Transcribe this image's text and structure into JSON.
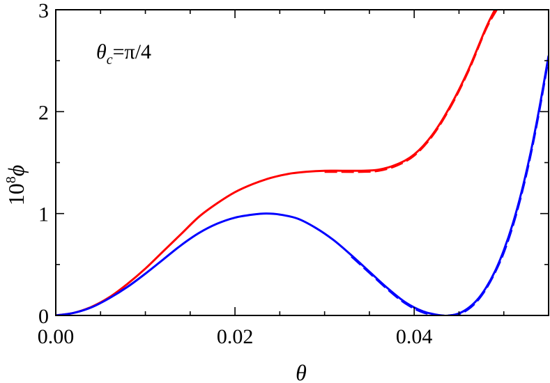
{
  "chart_data": {
    "type": "line",
    "title": "",
    "xlabel": "θ",
    "ylabel_base": "10",
    "ylabel_exp": "8",
    "ylabel_var": "ϕ",
    "xlim": [
      0,
      0.055
    ],
    "ylim": [
      0,
      3
    ],
    "x_ticks": [
      0.0,
      0.02,
      0.04
    ],
    "x_tick_labels": [
      "0.00",
      "0.02",
      "0.04"
    ],
    "y_ticks": [
      0,
      1,
      2,
      3
    ],
    "y_tick_labels": [
      "0",
      "1",
      "2",
      "3"
    ],
    "grid": false,
    "annotation": {
      "var": "θ",
      "sub": "c",
      "rest": "=π/4"
    },
    "series": [
      {
        "color": "#ff0000",
        "style": "solid",
        "x": [
          0.0,
          0.002,
          0.004,
          0.006,
          0.008,
          0.01,
          0.012,
          0.014,
          0.016,
          0.018,
          0.02,
          0.022,
          0.024,
          0.026,
          0.028,
          0.03,
          0.032,
          0.034,
          0.036,
          0.038,
          0.04,
          0.042,
          0.044,
          0.046,
          0.048,
          0.049
        ],
        "y": [
          0.0,
          0.025,
          0.085,
          0.18,
          0.31,
          0.46,
          0.63,
          0.8,
          0.97,
          1.1,
          1.21,
          1.29,
          1.35,
          1.39,
          1.41,
          1.42,
          1.42,
          1.42,
          1.43,
          1.48,
          1.58,
          1.77,
          2.05,
          2.4,
          2.82,
          3.0
        ]
      },
      {
        "color": "#ff0000",
        "style": "dashed",
        "x": [
          0.03,
          0.032,
          0.034,
          0.036,
          0.038,
          0.04,
          0.042,
          0.044,
          0.046,
          0.048,
          0.0492
        ],
        "y": [
          1.41,
          1.41,
          1.41,
          1.42,
          1.47,
          1.57,
          1.76,
          2.04,
          2.39,
          2.81,
          3.0
        ]
      },
      {
        "color": "#0000ff",
        "style": "solid",
        "x": [
          0.0,
          0.002,
          0.004,
          0.006,
          0.008,
          0.01,
          0.012,
          0.014,
          0.016,
          0.018,
          0.02,
          0.022,
          0.0235,
          0.025,
          0.027,
          0.029,
          0.031,
          0.033,
          0.035,
          0.037,
          0.039,
          0.041,
          0.043,
          0.044,
          0.045,
          0.046,
          0.047,
          0.048,
          0.049,
          0.05,
          0.051,
          0.052,
          0.053,
          0.054,
          0.055
        ],
        "y": [
          0.0,
          0.025,
          0.08,
          0.17,
          0.28,
          0.41,
          0.55,
          0.69,
          0.81,
          0.9,
          0.96,
          0.99,
          1.0,
          0.99,
          0.95,
          0.86,
          0.74,
          0.59,
          0.43,
          0.27,
          0.13,
          0.04,
          0.0,
          0.0,
          0.02,
          0.07,
          0.15,
          0.27,
          0.43,
          0.64,
          0.9,
          1.22,
          1.6,
          2.05,
          2.55
        ]
      },
      {
        "color": "#0000ff",
        "style": "dashed",
        "x": [
          0.033,
          0.035,
          0.037,
          0.039,
          0.041,
          0.043,
          0.044,
          0.045,
          0.046,
          0.047,
          0.048,
          0.049,
          0.05,
          0.051,
          0.052,
          0.053,
          0.054,
          0.055
        ],
        "y": [
          0.58,
          0.42,
          0.26,
          0.12,
          0.03,
          0.0,
          0.0,
          0.015,
          0.06,
          0.14,
          0.26,
          0.42,
          0.62,
          0.88,
          1.2,
          1.58,
          2.03,
          2.53
        ]
      }
    ]
  }
}
